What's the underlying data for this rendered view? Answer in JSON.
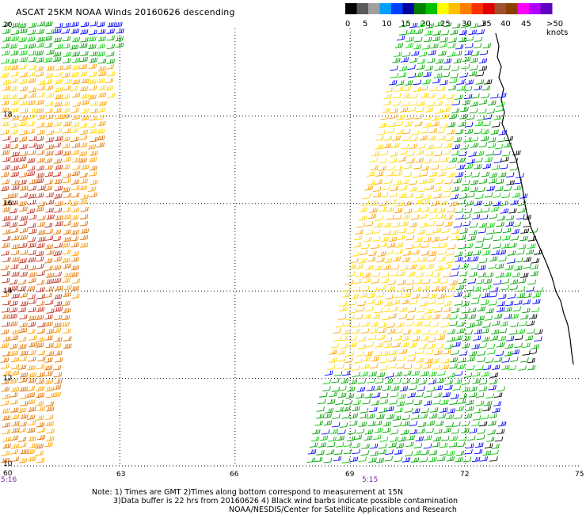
{
  "title": "ASCAT 25KM NOAA Winds 20160626 descending",
  "colorbar": {
    "colors": [
      "#000000",
      "#5a5a5a",
      "#a0a0a0",
      "#00a0ff",
      "#0040ff",
      "#0000a0",
      "#008000",
      "#00c000",
      "#ffff00",
      "#ffc000",
      "#ff8000",
      "#ff3000",
      "#e00000",
      "#a05030",
      "#8b4000",
      "#ff00ff",
      "#b000ff",
      "#6000c0"
    ],
    "tick_labels": [
      "0",
      "5",
      "10",
      "15",
      "20",
      "25",
      "30",
      "35",
      "40",
      "45",
      ">50 knots"
    ]
  },
  "axes": {
    "lat_labels": [
      "20",
      "18",
      "16",
      "14",
      "12",
      "10"
    ],
    "lon_labels": [
      "60",
      "63",
      "66",
      "69",
      "72",
      "75"
    ],
    "lat_range": [
      10,
      20
    ],
    "lon_range": [
      60,
      75
    ]
  },
  "times": {
    "left_swath": "5:16",
    "right_swath": "5:15"
  },
  "notes": {
    "line1": "Note: 1) Times are GMT 2)Times along bottom correspond to measurement at 15N",
    "line2": "3)Data buffer is 22 hrs from 20160626 4) Black wind barbs indicate possible contamination",
    "line3": "NOAA/NESDIS/Center for Satellite Applications and Research"
  },
  "barb_colors": {
    "blue": "#0000ff",
    "dark_blue": "#0000a0",
    "green": "#00a000",
    "light_green": "#00cc00",
    "yellow": "#ffd700",
    "orange": "#ffa000",
    "dark_orange": "#e07000",
    "red": "#c03020",
    "brown": "#a04000",
    "black": "#000000",
    "coast": "#000000"
  }
}
